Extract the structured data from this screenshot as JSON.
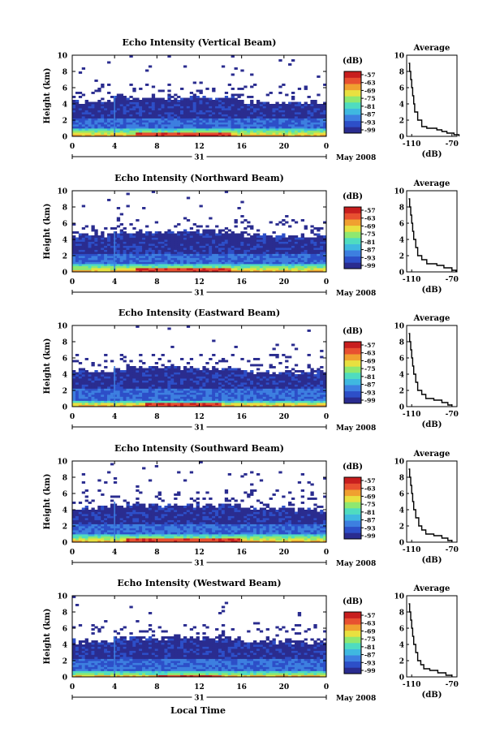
{
  "colors": {
    "colormap": [
      "#2a2c8f",
      "#2d4fc8",
      "#3d7fe0",
      "#3fb8e0",
      "#4fdcc0",
      "#8fe870",
      "#e8e040",
      "#f0a030",
      "#e85030",
      "#c81e1e"
    ]
  },
  "footer": {
    "xlabel": "Local Time"
  },
  "chart_data": [
    {
      "type": "heatmap",
      "title": "Echo Intensity (Vertical Beam)",
      "ylabel": "Height (km)",
      "y_ticks": [
        "0",
        "2",
        "4",
        "6",
        "8",
        "10"
      ],
      "x_ticks": [
        "0",
        "4",
        "8",
        "12",
        "16",
        "20",
        "0"
      ],
      "date_day": "31",
      "date_label": "May 2008",
      "xlim": [
        0,
        24
      ],
      "ylim": [
        0,
        10
      ],
      "colorbar": {
        "unit": "(dB)",
        "ticks": [
          "-57",
          "-63",
          "-69",
          "-75",
          "-81",
          "-87",
          "-93",
          "-99"
        ]
      },
      "layers": {
        "top_km": 4.7,
        "strong_km": 1.1,
        "core_km": 0.6,
        "core_from_h": 6,
        "core_to_h": 15
      },
      "average": {
        "title": "Average",
        "xlabel": "(dB)",
        "x_ticks": [
          "-110",
          "-70"
        ],
        "xlim": [
          -115,
          -65
        ],
        "profile": [
          [
            -63,
            0
          ],
          [
            -68,
            0.2
          ],
          [
            -75,
            0.4
          ],
          [
            -80,
            0.6
          ],
          [
            -85,
            0.8
          ],
          [
            -95,
            1
          ],
          [
            -100,
            1.2
          ],
          [
            -104,
            2
          ],
          [
            -107,
            3
          ],
          [
            -108,
            4
          ],
          [
            -109,
            5
          ],
          [
            -110,
            6
          ],
          [
            -111,
            7
          ],
          [
            -112,
            8
          ],
          [
            -113,
            9
          ]
        ]
      }
    },
    {
      "type": "heatmap",
      "title": "Echo Intensity (Northward Beam)",
      "ylabel": "Height (km)",
      "y_ticks": [
        "0",
        "2",
        "4",
        "6",
        "8",
        "10"
      ],
      "x_ticks": [
        "0",
        "4",
        "8",
        "12",
        "16",
        "20",
        "0"
      ],
      "date_day": "31",
      "date_label": "May 2008",
      "xlim": [
        0,
        24
      ],
      "ylim": [
        0,
        10
      ],
      "colorbar": {
        "unit": "(dB)",
        "ticks": [
          "-57",
          "-63",
          "-69",
          "-75",
          "-81",
          "-87",
          "-93",
          "-99"
        ]
      },
      "layers": {
        "top_km": 5.0,
        "strong_km": 0.9,
        "core_km": 0.4,
        "core_from_h": 6,
        "core_to_h": 15
      },
      "average": {
        "title": "Average",
        "xlabel": "(dB)",
        "x_ticks": [
          "-110",
          "-70"
        ],
        "xlim": [
          -115,
          -65
        ],
        "profile": [
          [
            -66,
            0
          ],
          [
            -70,
            0.2
          ],
          [
            -78,
            0.5
          ],
          [
            -85,
            0.8
          ],
          [
            -95,
            1
          ],
          [
            -100,
            1.5
          ],
          [
            -104,
            2
          ],
          [
            -106,
            3
          ],
          [
            -108,
            4
          ],
          [
            -109,
            5
          ],
          [
            -110,
            6
          ],
          [
            -111,
            7
          ],
          [
            -112,
            8
          ],
          [
            -113,
            9
          ]
        ]
      }
    },
    {
      "type": "heatmap",
      "title": "Echo Intensity (Eastward Beam)",
      "ylabel": "Height (km)",
      "y_ticks": [
        "0",
        "2",
        "4",
        "6",
        "8",
        "10"
      ],
      "x_ticks": [
        "0",
        "4",
        "8",
        "12",
        "16",
        "20",
        "0"
      ],
      "date_day": "31",
      "date_label": "May 2008",
      "xlim": [
        0,
        24
      ],
      "ylim": [
        0,
        10
      ],
      "colorbar": {
        "unit": "(dB)",
        "ticks": [
          "-57",
          "-63",
          "-69",
          "-75",
          "-81",
          "-87",
          "-93",
          "-99"
        ]
      },
      "layers": {
        "top_km": 4.8,
        "strong_km": 0.8,
        "core_km": 0.4,
        "core_from_h": 7,
        "core_to_h": 14
      },
      "average": {
        "title": "Average",
        "xlabel": "(dB)",
        "x_ticks": [
          "-110",
          "-70"
        ],
        "xlim": [
          -115,
          -65
        ],
        "profile": [
          [
            -70,
            0
          ],
          [
            -74,
            0.2
          ],
          [
            -80,
            0.5
          ],
          [
            -88,
            0.8
          ],
          [
            -96,
            1
          ],
          [
            -100,
            1.5
          ],
          [
            -104,
            2
          ],
          [
            -106,
            3
          ],
          [
            -108,
            4
          ],
          [
            -109,
            5
          ],
          [
            -110,
            6
          ],
          [
            -111,
            7
          ],
          [
            -112,
            8
          ],
          [
            -113,
            9
          ]
        ]
      }
    },
    {
      "type": "heatmap",
      "title": "Echo Intensity (Southward Beam)",
      "ylabel": "Height (km)",
      "y_ticks": [
        "0",
        "2",
        "4",
        "6",
        "8",
        "10"
      ],
      "x_ticks": [
        "0",
        "4",
        "8",
        "12",
        "16",
        "20",
        "0"
      ],
      "date_day": "31",
      "date_label": "May 2008",
      "xlim": [
        0,
        24
      ],
      "ylim": [
        0,
        10
      ],
      "colorbar": {
        "unit": "(dB)",
        "ticks": [
          "-57",
          "-63",
          "-69",
          "-75",
          "-81",
          "-87",
          "-93",
          "-99"
        ]
      },
      "layers": {
        "top_km": 4.6,
        "strong_km": 0.9,
        "core_km": 0.5,
        "core_from_h": 5,
        "core_to_h": 16
      },
      "average": {
        "title": "Average",
        "xlabel": "(dB)",
        "x_ticks": [
          "-110",
          "-70"
        ],
        "xlim": [
          -115,
          -65
        ],
        "profile": [
          [
            -70,
            0
          ],
          [
            -74,
            0.2
          ],
          [
            -80,
            0.5
          ],
          [
            -88,
            0.8
          ],
          [
            -96,
            1
          ],
          [
            -100,
            1.5
          ],
          [
            -103,
            2
          ],
          [
            -106,
            3
          ],
          [
            -108,
            4
          ],
          [
            -109,
            5
          ],
          [
            -110,
            6
          ],
          [
            -111,
            7
          ],
          [
            -112,
            8
          ],
          [
            -113,
            9
          ]
        ]
      }
    },
    {
      "type": "heatmap",
      "title": "Echo Intensity (Westward Beam)",
      "ylabel": "Height (km)",
      "y_ticks": [
        "0",
        "2",
        "4",
        "6",
        "8",
        "10"
      ],
      "x_ticks": [
        "0",
        "4",
        "8",
        "12",
        "16",
        "20",
        "0"
      ],
      "date_day": "31",
      "date_label": "May 2008",
      "xlim": [
        0,
        24
      ],
      "ylim": [
        0,
        10
      ],
      "colorbar": {
        "unit": "(dB)",
        "ticks": [
          "-57",
          "-63",
          "-69",
          "-75",
          "-81",
          "-87",
          "-93",
          "-99"
        ]
      },
      "layers": {
        "top_km": 4.8,
        "strong_km": 0.7,
        "core_km": 0.3,
        "core_from_h": 8,
        "core_to_h": 14
      },
      "average": {
        "title": "Average",
        "xlabel": "(dB)",
        "x_ticks": [
          "-110",
          "-70"
        ],
        "xlim": [
          -115,
          -65
        ],
        "profile": [
          [
            -70,
            0
          ],
          [
            -76,
            0.2
          ],
          [
            -84,
            0.5
          ],
          [
            -92,
            0.8
          ],
          [
            -98,
            1
          ],
          [
            -101,
            1.5
          ],
          [
            -104,
            2
          ],
          [
            -106,
            3
          ],
          [
            -108,
            4
          ],
          [
            -109,
            5
          ],
          [
            -110,
            6
          ],
          [
            -111,
            7
          ],
          [
            -112,
            8
          ],
          [
            -113,
            9
          ]
        ]
      }
    }
  ]
}
